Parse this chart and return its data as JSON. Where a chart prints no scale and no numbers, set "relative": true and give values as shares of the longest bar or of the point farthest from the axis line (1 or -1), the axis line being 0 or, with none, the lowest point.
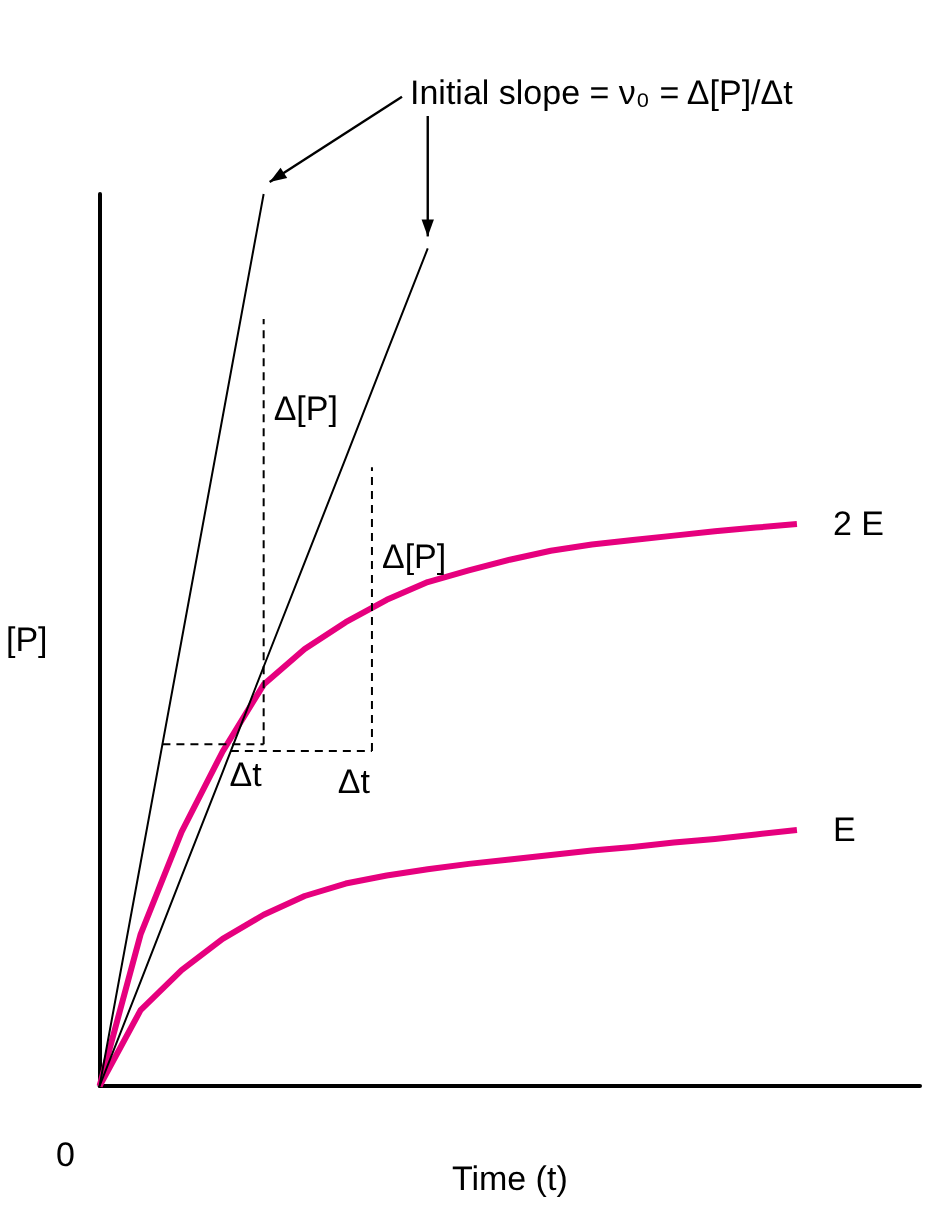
{
  "chart_data": {
    "type": "line",
    "relative": true,
    "xlabel": "Time (t)",
    "ylabel": "[P]",
    "categories": [
      null,
      null,
      null,
      null,
      null,
      null,
      null,
      null,
      null,
      null,
      null,
      null,
      null,
      null,
      null,
      null,
      null,
      null,
      null,
      null,
      null
    ],
    "series": [
      {
        "name": "2 E",
        "color": "#e6007e",
        "values": [
          0,
          0.17,
          0.285,
          0.375,
          0.45,
          0.49,
          0.52,
          0.545,
          0.565,
          0.578,
          0.59,
          0.6,
          0.607,
          0.612,
          0.617,
          0.622,
          0.626,
          0.63,
          null,
          null,
          null
        ]
      },
      {
        "name": "E",
        "color": "#e6007e",
        "values": [
          0,
          0.085,
          0.13,
          0.165,
          0.192,
          0.213,
          0.227,
          0.236,
          0.243,
          0.249,
          0.254,
          0.259,
          0.264,
          0.268,
          0.273,
          0.277,
          0.282,
          0.287,
          null,
          null,
          null
        ]
      },
      {
        "color": "#000000",
        "values": [
          0,
          0.25,
          0.5,
          0.75,
          1,
          null,
          null,
          null,
          null,
          null,
          null,
          null,
          null,
          null,
          null,
          null,
          null,
          null,
          null,
          null,
          null
        ]
      },
      {
        "color": "#000000",
        "values": [
          0,
          0.117,
          0.235,
          0.352,
          0.47,
          0.587,
          0.704,
          0.822,
          0.939,
          null,
          null,
          null,
          null,
          null,
          null,
          null,
          null,
          null,
          null,
          null,
          null
        ]
      }
    ],
    "annotations": [
      "Initial slope = ν₀ = Δ[P]/Δt",
      "0",
      "Δ[P]",
      "Δt",
      "Δ[P]",
      "Δt"
    ],
    "grid": false,
    "legend": false,
    "marker": "none",
    "line_style": "solid"
  }
}
